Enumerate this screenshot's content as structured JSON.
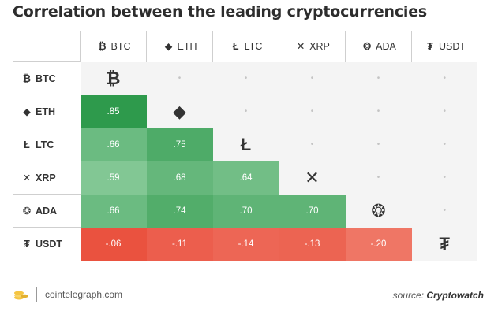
{
  "title": "Correlation between the leading cryptocurrencies",
  "chart_data": {
    "type": "heatmap",
    "title": "Correlation between the leading cryptocurrencies",
    "assets": [
      {
        "symbol": "BTC",
        "icon": "bitcoin-icon",
        "glyph": "₿"
      },
      {
        "symbol": "ETH",
        "icon": "ethereum-icon",
        "glyph": "◆"
      },
      {
        "symbol": "LTC",
        "icon": "litecoin-icon",
        "glyph": "Ł"
      },
      {
        "symbol": "XRP",
        "icon": "xrp-icon",
        "glyph": "✕"
      },
      {
        "symbol": "ADA",
        "icon": "cardano-icon",
        "glyph": "❂"
      },
      {
        "symbol": "USDT",
        "icon": "tether-icon",
        "glyph": "₮"
      }
    ],
    "matrix": [
      [
        null,
        null,
        null,
        null,
        null,
        null
      ],
      [
        0.85,
        null,
        null,
        null,
        null,
        null
      ],
      [
        0.66,
        0.75,
        null,
        null,
        null,
        null
      ],
      [
        0.59,
        0.68,
        0.64,
        null,
        null,
        null
      ],
      [
        0.66,
        0.74,
        0.7,
        0.7,
        null,
        null
      ],
      [
        -0.06,
        -0.11,
        -0.14,
        -0.13,
        -0.2,
        null
      ]
    ],
    "labels": [
      [
        null,
        null,
        null,
        null,
        null,
        null
      ],
      [
        ".85",
        null,
        null,
        null,
        null,
        null
      ],
      [
        ".66",
        ".75",
        null,
        null,
        null,
        null
      ],
      [
        ".59",
        ".68",
        ".64",
        null,
        null,
        null
      ],
      [
        ".66",
        ".74",
        ".70",
        ".70",
        null,
        null
      ],
      [
        "-.06",
        "-.11",
        "-.14",
        "-.13",
        "-.20",
        null
      ]
    ],
    "empty_marker": "•",
    "colors": {
      "positive_strong": "#2e9a4c",
      "positive_light": "#8fce9f",
      "negative_strong": "#ea4f3c",
      "negative_light": "#f39a8c",
      "empty": "#f4f4f4"
    }
  },
  "footer": {
    "site": "cointelegraph.com",
    "source_prefix": "source: ",
    "source_name": "Cryptowatch"
  }
}
